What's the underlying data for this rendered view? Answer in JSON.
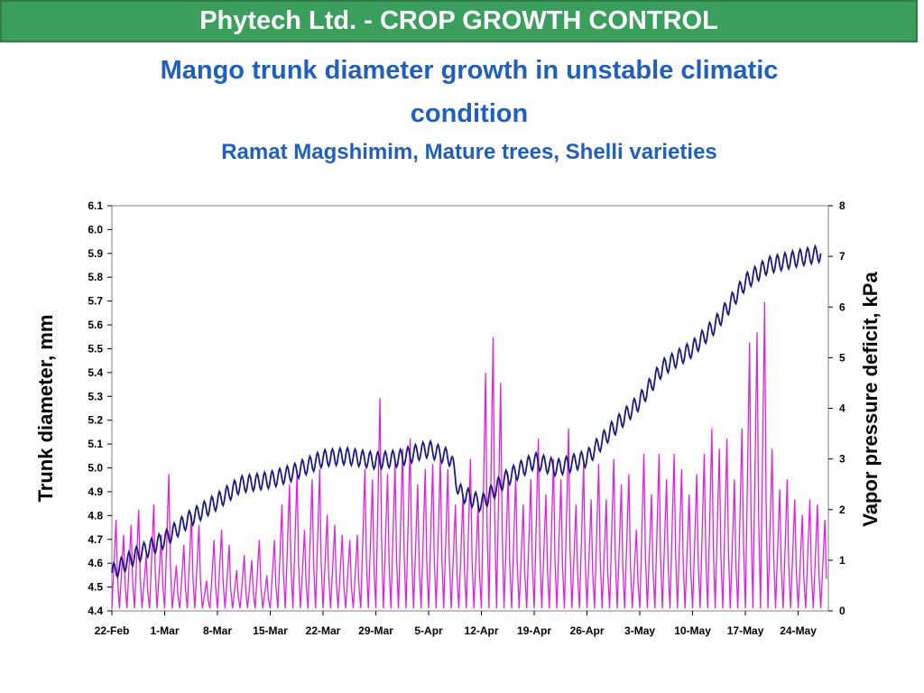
{
  "header": {
    "banner": "Phytech Ltd. - CROP GROWTH CONTROL"
  },
  "title_line1": "Mango trunk diameter growth in unstable climatic",
  "title_line2": "condition",
  "subtitle": "Ramat Magshimim, Mature trees, Shelli varieties",
  "colors": {
    "banner": "#3a9e5c",
    "title": "#1f5fc0",
    "diameter": "#1a1a80",
    "vpd": "#e020e0"
  },
  "chart_data": {
    "type": "line",
    "xlabel": "",
    "ylabel": "Trunk diameter, mm",
    "y2label": "Vapor pressure deficit, kPa",
    "ylim": [
      4.4,
      6.1
    ],
    "y2lim": [
      0,
      8
    ],
    "yticks": [
      "4.4",
      "4.5",
      "4.6",
      "4.7",
      "4.8",
      "4.9",
      "5.0",
      "5.1",
      "5.2",
      "5.3",
      "5.4",
      "5.5",
      "5.6",
      "5.7",
      "5.8",
      "5.9",
      "6.0",
      "6.1"
    ],
    "y2ticks": [
      "0",
      "1",
      "2",
      "3",
      "4",
      "5",
      "6",
      "7",
      "8"
    ],
    "x_range_days": [
      0,
      95
    ],
    "xticks": [
      {
        "label": "22-Feb",
        "day": 0
      },
      {
        "label": "1-Mar",
        "day": 7
      },
      {
        "label": "8-Mar",
        "day": 14
      },
      {
        "label": "15-Mar",
        "day": 21
      },
      {
        "label": "22-Mar",
        "day": 28
      },
      {
        "label": "29-Mar",
        "day": 35
      },
      {
        "label": "5-Apr",
        "day": 42
      },
      {
        "label": "12-Apr",
        "day": 49
      },
      {
        "label": "19-Apr",
        "day": 56
      },
      {
        "label": "26-Apr",
        "day": 63
      },
      {
        "label": "3-May",
        "day": 70
      },
      {
        "label": "10-May",
        "day": 77
      },
      {
        "label": "17-May",
        "day": 84
      },
      {
        "label": "24-May",
        "day": 91
      }
    ],
    "grid": false,
    "series": [
      {
        "name": "",
        "axis": "left",
        "x": [
          0,
          3,
          7,
          10,
          14,
          17,
          21,
          24,
          28,
          31,
          35,
          38,
          42,
          45,
          46,
          49,
          52,
          56,
          59,
          63,
          66,
          70,
          73,
          77,
          80,
          84,
          87,
          91,
          94
        ],
        "y": [
          4.56,
          4.63,
          4.7,
          4.78,
          4.86,
          4.93,
          4.95,
          4.98,
          5.04,
          5.05,
          5.03,
          5.04,
          5.08,
          5.04,
          4.9,
          4.85,
          4.95,
          5.03,
          5.0,
          5.04,
          5.15,
          5.28,
          5.42,
          5.5,
          5.6,
          5.78,
          5.85,
          5.88,
          5.9
        ]
      },
      {
        "name": "",
        "axis": "right",
        "x": [
          0,
          1,
          2,
          3,
          4,
          5,
          6,
          7,
          8,
          9,
          10,
          11,
          12,
          13,
          14,
          15,
          16,
          17,
          18,
          19,
          20,
          21,
          22,
          23,
          24,
          25,
          26,
          27,
          28,
          29,
          30,
          31,
          32,
          33,
          34,
          35,
          36,
          37,
          38,
          39,
          40,
          41,
          42,
          43,
          44,
          45,
          46,
          47,
          48,
          49,
          50,
          51,
          52,
          53,
          54,
          55,
          56,
          57,
          58,
          59,
          60,
          61,
          62,
          63,
          64,
          65,
          66,
          67,
          68,
          69,
          70,
          71,
          72,
          73,
          74,
          75,
          76,
          77,
          78,
          79,
          80,
          81,
          82,
          83,
          84,
          85,
          86,
          87,
          88,
          89,
          90,
          91,
          92,
          93,
          94
        ],
        "y": [
          1.8,
          1.5,
          1.7,
          2.0,
          1.1,
          2.1,
          1.5,
          2.7,
          0.9,
          1.3,
          1.9,
          1.7,
          0.6,
          1.4,
          1.6,
          1.3,
          0.8,
          1.1,
          1.0,
          1.4,
          0.7,
          1.4,
          2.1,
          2.5,
          2.7,
          1.6,
          2.6,
          2.8,
          1.9,
          1.7,
          1.5,
          1.4,
          1.5,
          2.8,
          2.6,
          4.2,
          2.7,
          2.9,
          3.2,
          3.4,
          2.5,
          2.8,
          2.9,
          3.0,
          2.8,
          2.1,
          2.3,
          3.0,
          2.1,
          4.7,
          5.4,
          4.5,
          2.7,
          2.7,
          2.1,
          2.6,
          3.4,
          2.3,
          3.0,
          2.6,
          3.6,
          2.1,
          2.9,
          2.2,
          2.9,
          2.2,
          3.0,
          2.5,
          2.7,
          1.6,
          3.1,
          2.3,
          3.1,
          2.6,
          3.1,
          2.8,
          2.3,
          2.7,
          3.1,
          3.6,
          3.2,
          3.4,
          2.6,
          3.6,
          5.3,
          5.5,
          6.1,
          3.2,
          2.4,
          2.6,
          2.2,
          1.9,
          2.2,
          2.1,
          1.8
        ]
      }
    ]
  }
}
